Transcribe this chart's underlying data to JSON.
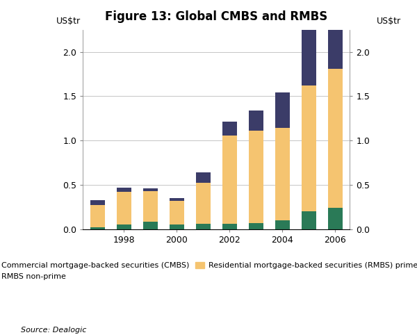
{
  "title": "Figure 13: Global CMBS and RMBS",
  "ylabel_left": "US$tr",
  "ylabel_right": "US$tr",
  "source": "Source: Dealogic",
  "years": [
    1997,
    1998,
    1999,
    2000,
    2001,
    2002,
    2003,
    2004,
    2005,
    2006
  ],
  "cmbs": [
    0.02,
    0.05,
    0.08,
    0.05,
    0.06,
    0.06,
    0.07,
    0.1,
    0.2,
    0.24
  ],
  "rmbs_prime": [
    0.25,
    0.37,
    0.35,
    0.27,
    0.46,
    1.0,
    1.04,
    1.04,
    1.42,
    1.57
  ],
  "rmbs_nonprime": [
    0.06,
    0.05,
    0.03,
    0.03,
    0.12,
    0.15,
    0.23,
    0.4,
    0.63,
    0.48
  ],
  "color_cmbs": "#2a7a57",
  "color_rmbs_prime": "#f5c470",
  "color_rmbs_nonprime": "#3b3c68",
  "ylim": [
    0.0,
    2.25
  ],
  "yticks": [
    0.0,
    0.5,
    1.0,
    1.5,
    2.0
  ],
  "bar_width": 0.55,
  "title_fontsize": 12,
  "tick_fontsize": 9,
  "legend_fontsize": 8,
  "legend_entries": [
    "Commercial mortgage-backed securities (CMBS)",
    "Residential mortgage-backed securities (RMBS) prime",
    "RMBS non-prime"
  ],
  "background_color": "#ffffff",
  "grid_color": "#bbbbbb"
}
